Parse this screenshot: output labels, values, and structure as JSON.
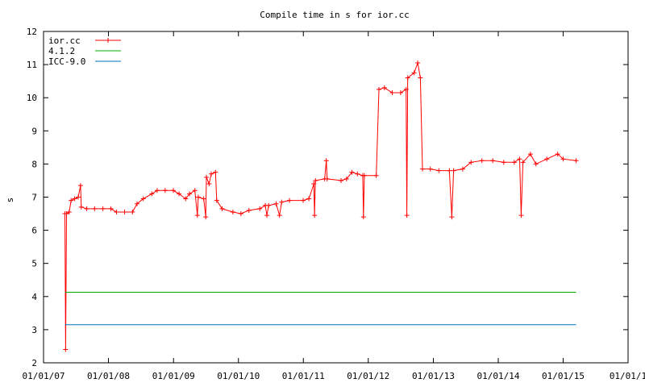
{
  "chart_data": {
    "type": "line",
    "title": "Compile time in s for ior.cc",
    "xlabel": "",
    "ylabel": "s",
    "ylim": [
      2,
      12
    ],
    "xlim": [
      "2007-01-01",
      "2016-01-01"
    ],
    "y_ticks": [
      "2",
      "3",
      "4",
      "5",
      "6",
      "7",
      "8",
      "9",
      "10",
      "11",
      "12"
    ],
    "x_ticks": [
      {
        "date": "2007-01-01",
        "label": "01/01/07"
      },
      {
        "date": "2008-01-01",
        "label": "01/01/08"
      },
      {
        "date": "2009-01-01",
        "label": "01/01/09"
      },
      {
        "date": "2010-01-01",
        "label": "01/01/10"
      },
      {
        "date": "2011-01-01",
        "label": "01/01/11"
      },
      {
        "date": "2012-01-01",
        "label": "01/01/12"
      },
      {
        "date": "2013-01-01",
        "label": "01/01/13"
      },
      {
        "date": "2014-01-01",
        "label": "01/01/14"
      },
      {
        "date": "2015-01-01",
        "label": "01/01/15"
      },
      {
        "date": "2016-01-01",
        "label": "01/01/1"
      }
    ],
    "grid": false,
    "legend_position": "top-left",
    "series": [
      {
        "name": "ior.cc",
        "color": "#ff0000",
        "marker": "plus",
        "points": [
          [
            "2007-05-01",
            6.5
          ],
          [
            "2007-05-05",
            2.4
          ],
          [
            "2007-05-10",
            6.5
          ],
          [
            "2007-05-25",
            6.55
          ],
          [
            "2007-06-05",
            6.9
          ],
          [
            "2007-06-25",
            6.95
          ],
          [
            "2007-07-15",
            7.0
          ],
          [
            "2007-07-28",
            7.35
          ],
          [
            "2007-08-01",
            6.7
          ],
          [
            "2007-09-01",
            6.65
          ],
          [
            "2007-10-15",
            6.65
          ],
          [
            "2007-12-01",
            6.65
          ],
          [
            "2008-01-15",
            6.65
          ],
          [
            "2008-02-15",
            6.55
          ],
          [
            "2008-04-01",
            6.55
          ],
          [
            "2008-05-15",
            6.55
          ],
          [
            "2008-06-10",
            6.8
          ],
          [
            "2008-07-15",
            6.95
          ],
          [
            "2008-09-01",
            7.1
          ],
          [
            "2008-10-01",
            7.2
          ],
          [
            "2008-11-15",
            7.2
          ],
          [
            "2008-12-31",
            7.2
          ],
          [
            "2009-02-01",
            7.1
          ],
          [
            "2009-03-10",
            6.95
          ],
          [
            "2009-04-01",
            7.1
          ],
          [
            "2009-05-01",
            7.2
          ],
          [
            "2009-05-15",
            6.45
          ],
          [
            "2009-05-20",
            7.0
          ],
          [
            "2009-06-20",
            6.95
          ],
          [
            "2009-07-01",
            6.4
          ],
          [
            "2009-07-05",
            7.6
          ],
          [
            "2009-07-20",
            7.4
          ],
          [
            "2009-08-01",
            7.7
          ],
          [
            "2009-08-25",
            7.75
          ],
          [
            "2009-09-01",
            6.9
          ],
          [
            "2009-10-01",
            6.65
          ],
          [
            "2009-12-01",
            6.55
          ],
          [
            "2010-01-15",
            6.5
          ],
          [
            "2010-03-01",
            6.6
          ],
          [
            "2010-05-01",
            6.65
          ],
          [
            "2010-06-01",
            6.75
          ],
          [
            "2010-06-10",
            6.45
          ],
          [
            "2010-06-20",
            6.75
          ],
          [
            "2010-08-01",
            6.8
          ],
          [
            "2010-08-20",
            6.45
          ],
          [
            "2010-09-01",
            6.85
          ],
          [
            "2010-10-15",
            6.9
          ],
          [
            "2010-12-31",
            6.9
          ],
          [
            "2011-02-01",
            6.95
          ],
          [
            "2011-03-01",
            7.4
          ],
          [
            "2011-03-05",
            6.45
          ],
          [
            "2011-03-10",
            7.5
          ],
          [
            "2011-05-01",
            7.55
          ],
          [
            "2011-05-10",
            8.1
          ],
          [
            "2011-05-15",
            7.55
          ],
          [
            "2011-08-01",
            7.5
          ],
          [
            "2011-09-01",
            7.55
          ],
          [
            "2011-10-01",
            7.75
          ],
          [
            "2011-11-01",
            7.7
          ],
          [
            "2011-12-01",
            7.65
          ],
          [
            "2011-12-05",
            6.4
          ],
          [
            "2011-12-10",
            7.65
          ],
          [
            "2012-02-15",
            7.65
          ],
          [
            "2012-03-01",
            10.25
          ],
          [
            "2012-04-01",
            10.3
          ],
          [
            "2012-05-15",
            10.15
          ],
          [
            "2012-07-01",
            10.15
          ],
          [
            "2012-08-01",
            10.25
          ],
          [
            "2012-08-05",
            6.45
          ],
          [
            "2012-08-10",
            10.6
          ],
          [
            "2012-09-15",
            10.75
          ],
          [
            "2012-10-05",
            11.05
          ],
          [
            "2012-10-20",
            10.6
          ],
          [
            "2012-11-01",
            7.85
          ],
          [
            "2012-12-15",
            7.85
          ],
          [
            "2013-02-01",
            7.8
          ],
          [
            "2013-04-01",
            7.8
          ],
          [
            "2013-04-15",
            6.4
          ],
          [
            "2013-04-25",
            7.8
          ],
          [
            "2013-06-15",
            7.85
          ],
          [
            "2013-08-01",
            8.05
          ],
          [
            "2013-10-01",
            8.1
          ],
          [
            "2013-12-01",
            8.1
          ],
          [
            "2014-02-01",
            8.05
          ],
          [
            "2014-04-01",
            8.05
          ],
          [
            "2014-05-01",
            8.15
          ],
          [
            "2014-05-10",
            6.45
          ],
          [
            "2014-05-20",
            8.05
          ],
          [
            "2014-07-01",
            8.3
          ],
          [
            "2014-08-01",
            8.0
          ],
          [
            "2014-10-01",
            8.15
          ],
          [
            "2014-12-01",
            8.3
          ],
          [
            "2015-01-01",
            8.15
          ],
          [
            "2015-03-15",
            8.1
          ]
        ]
      },
      {
        "name": "4.1.2",
        "color": "#00b000",
        "marker": "none",
        "points": [
          [
            "2007-05-01",
            4.13
          ],
          [
            "2015-03-15",
            4.13
          ]
        ]
      },
      {
        "name": "ICC-9.0",
        "color": "#0070c0",
        "marker": "none",
        "points": [
          [
            "2007-05-01",
            3.15
          ],
          [
            "2015-03-15",
            3.15
          ]
        ]
      }
    ]
  }
}
